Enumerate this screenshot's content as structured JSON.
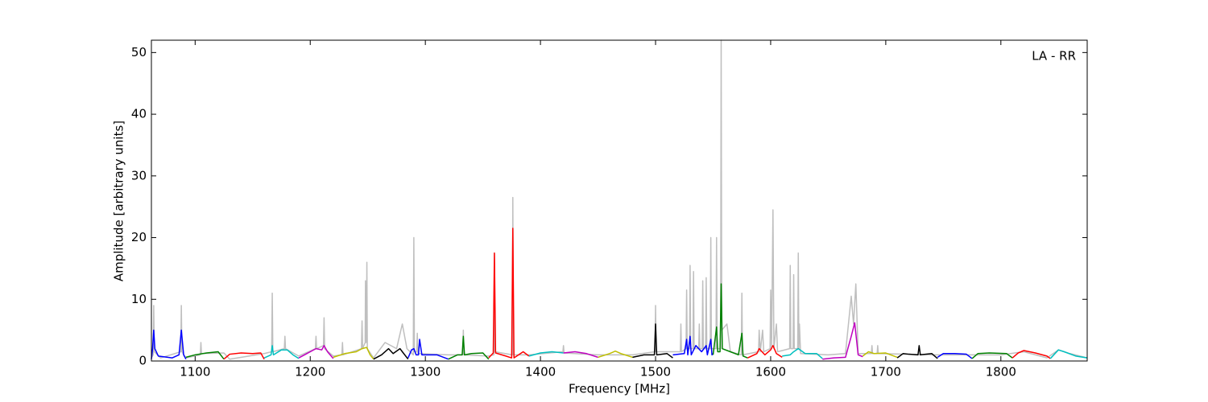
{
  "chart_data": {
    "type": "line",
    "xlabel": "Frequency [MHz]",
    "ylabel": "Amplitude [arbitrary units]",
    "annotation": "LA - RR",
    "xlim": [
      1062,
      1875
    ],
    "ylim": [
      0,
      52
    ],
    "xticks": [
      1100,
      1200,
      1300,
      1400,
      1500,
      1600,
      1700,
      1800
    ],
    "yticks": [
      0,
      10,
      20,
      30,
      40,
      50
    ],
    "series": [
      {
        "color": "#bfbfbf",
        "x": [
          1062,
          1063.5,
          1064,
          1064.5,
          1070,
          1087.5,
          1088,
          1088.5,
          1092,
          1104.5,
          1105,
          1105.5,
          1125,
          1130,
          1160,
          1166.5,
          1167,
          1167.5,
          1177.5,
          1178,
          1178.5,
          1190,
          1204.5,
          1205,
          1205.5,
          1211.5,
          1212,
          1212.5,
          1220,
          1227.5,
          1228,
          1228.5,
          1244.5,
          1245,
          1245.5,
          1247.7,
          1248,
          1248.4,
          1248.8,
          1249.2,
          1249.6,
          1255,
          1265,
          1275,
          1280,
          1284,
          1289.5,
          1290,
          1290.5,
          1292.5,
          1293,
          1293.5,
          1320,
          1332.5,
          1333,
          1333.5,
          1355,
          1359.5,
          1360,
          1360.5,
          1375.5,
          1376,
          1376.5,
          1390,
          1419.5,
          1420,
          1420.5,
          1450,
          1480,
          1499.5,
          1500,
          1500.5,
          1521.5,
          1522,
          1522.5,
          1526.5,
          1527,
          1527.5,
          1529.5,
          1530,
          1530.5,
          1532.5,
          1533,
          1533.5,
          1537.5,
          1538,
          1538.5,
          1540.5,
          1541,
          1541.5,
          1543.5,
          1544,
          1544.5,
          1547.5,
          1548,
          1548.5,
          1552.5,
          1553,
          1553.5,
          1556.5,
          1557,
          1557.5,
          1562,
          1565,
          1574.5,
          1575,
          1575.5,
          1589.5,
          1590,
          1591,
          1593,
          1594,
          1599.5,
          1600,
          1600.8,
          1602,
          1602.8,
          1605,
          1606,
          1616.5,
          1617,
          1617.5,
          1619.5,
          1620,
          1620.5,
          1623.5,
          1624,
          1624.5,
          1625,
          1626,
          1650,
          1665,
          1670,
          1672,
          1674,
          1676,
          1687.5,
          1688,
          1688.5,
          1692.5,
          1693,
          1693.5,
          1740,
          1800,
          1820,
          1840,
          1850,
          1860,
          1875
        ],
        "values": [
          0.5,
          1,
          9,
          1.5,
          0.5,
          1.5,
          9,
          1.5,
          0.5,
          1,
          3,
          1.2,
          1.3,
          0.3,
          1.2,
          1.5,
          11,
          1.5,
          2,
          4,
          2,
          0.8,
          2,
          4,
          2,
          2.5,
          7,
          2,
          0.8,
          1,
          3,
          1,
          2,
          6.5,
          2,
          3,
          13,
          3,
          3,
          16,
          2,
          0.5,
          3,
          2,
          6,
          2,
          1,
          20,
          1.5,
          1.5,
          4.5,
          1.2,
          1,
          1,
          5,
          1,
          0.8,
          1,
          17.5,
          1.5,
          1,
          26.5,
          1,
          1,
          1.5,
          2.5,
          1.3,
          1,
          1,
          1.5,
          9,
          1.5,
          1.5,
          6,
          1.5,
          2,
          11.5,
          2,
          2,
          15.5,
          2,
          2,
          14.5,
          2,
          2,
          6,
          2,
          2,
          13,
          2,
          2,
          13.5,
          2,
          2,
          20,
          2,
          2,
          20,
          2,
          2,
          52,
          5,
          6,
          1.5,
          1,
          11,
          1,
          1.5,
          5,
          1.5,
          5,
          1.5,
          2,
          11.5,
          2,
          24.5,
          2,
          6,
          1.5,
          2,
          15.5,
          2,
          2,
          14,
          2,
          2,
          17.5,
          2,
          6,
          1.2,
          1,
          1.2,
          10.5,
          6,
          12.5,
          1.2,
          1.2,
          2.5,
          1.2,
          1.2,
          2.5,
          1.2,
          1,
          1,
          1.5,
          0.5,
          1.8,
          1.2,
          0.5
        ]
      },
      {
        "color": "#0000ff",
        "x": [
          1062,
          1063,
          1064,
          1065,
          1068,
          1080,
          1086,
          1088,
          1090,
          1092
        ],
        "values": [
          0.3,
          2,
          5,
          2,
          0.8,
          0.5,
          1,
          5,
          1,
          0.3
        ]
      },
      {
        "color": "#008000",
        "x": [
          1092,
          1100,
          1110,
          1120,
          1125
        ],
        "values": [
          0.6,
          1,
          1.3,
          1.5,
          0.3
        ]
      },
      {
        "color": "#ff0000",
        "x": [
          1125,
          1130,
          1140,
          1150,
          1157,
          1160
        ],
        "values": [
          0.3,
          1.1,
          1.3,
          1.2,
          1.3,
          0.3
        ]
      },
      {
        "color": "#00bfbf",
        "x": [
          1160,
          1166,
          1167,
          1168,
          1175,
          1180,
          1185,
          1190
        ],
        "values": [
          0.5,
          1,
          2.5,
          1,
          1.8,
          1.8,
          1,
          0.4
        ]
      },
      {
        "color": "#bf00bf",
        "x": [
          1190,
          1200,
          1205,
          1210,
          1212,
          1215,
          1220
        ],
        "values": [
          0.5,
          1.5,
          2,
          1.8,
          2.5,
          1.5,
          0.4
        ]
      },
      {
        "color": "#bfbf00",
        "x": [
          1220,
          1230,
          1240,
          1245,
          1249,
          1252,
          1255
        ],
        "values": [
          0.6,
          1.2,
          1.5,
          2,
          2.2,
          1,
          0.3
        ]
      },
      {
        "color": "#000000",
        "x": [
          1255,
          1262,
          1268,
          1272,
          1278,
          1280,
          1285
        ],
        "values": [
          0.3,
          1,
          2,
          1.2,
          2,
          1.5,
          0.3
        ]
      },
      {
        "color": "#0000ff",
        "x": [
          1285,
          1288,
          1290,
          1292,
          1294,
          1295,
          1297,
          1310,
          1320
        ],
        "values": [
          0.5,
          1.8,
          2,
          1,
          1,
          3.5,
          1,
          1,
          0.3
        ]
      },
      {
        "color": "#008000",
        "x": [
          1320,
          1328,
          1332,
          1333,
          1334,
          1340,
          1350,
          1355
        ],
        "values": [
          0.3,
          1,
          1,
          4,
          1,
          1.2,
          1.3,
          0.3
        ]
      },
      {
        "color": "#ff0000",
        "x": [
          1355,
          1359,
          1360,
          1361,
          1370,
          1375,
          1376,
          1377,
          1385,
          1390
        ],
        "values": [
          0.5,
          1.3,
          17.5,
          1.3,
          0.8,
          0.5,
          21.5,
          0.5,
          1.5,
          0.8
        ]
      },
      {
        "color": "#00bfbf",
        "x": [
          1390,
          1400,
          1410,
          1420
        ],
        "values": [
          0.8,
          1.3,
          1.5,
          1.3
        ]
      },
      {
        "color": "#bf00bf",
        "x": [
          1420,
          1430,
          1440,
          1450
        ],
        "values": [
          1.3,
          1.5,
          1.2,
          0.6
        ]
      },
      {
        "color": "#bfbf00",
        "x": [
          1450,
          1460,
          1465,
          1470,
          1480
        ],
        "values": [
          0.6,
          1.2,
          1.6,
          1.2,
          0.6
        ]
      },
      {
        "color": "#000000",
        "x": [
          1480,
          1490,
          1499,
          1500,
          1501,
          1510,
          1515
        ],
        "values": [
          0.6,
          1,
          1,
          6,
          1,
          1.2,
          0.5
        ]
      },
      {
        "color": "#0000ff",
        "x": [
          1515,
          1525,
          1527,
          1528,
          1530,
          1531,
          1535,
          1540,
          1544,
          1545,
          1548,
          1549,
          1550
        ],
        "values": [
          1,
          1.2,
          3.5,
          1,
          4,
          1,
          2.5,
          1.5,
          2.5,
          1,
          3.5,
          1,
          1.2
        ]
      },
      {
        "color": "#008000",
        "x": [
          1550,
          1553,
          1554,
          1556,
          1557,
          1558,
          1565,
          1572,
          1575,
          1576,
          1580
        ],
        "values": [
          1,
          5.5,
          1.5,
          1.5,
          12.5,
          2,
          1.5,
          1,
          4.5,
          0.8,
          0.5
        ]
      },
      {
        "color": "#ff0000",
        "x": [
          1580,
          1588,
          1590,
          1595,
          1600,
          1602,
          1605,
          1610
        ],
        "values": [
          0.5,
          1.2,
          2,
          1,
          1.8,
          2.5,
          1.2,
          0.6
        ]
      },
      {
        "color": "#00bfbf",
        "x": [
          1610,
          1617,
          1620,
          1624,
          1630,
          1640,
          1645
        ],
        "values": [
          0.8,
          1,
          1.5,
          2,
          1.2,
          1.2,
          0.4
        ]
      },
      {
        "color": "#bf00bf",
        "x": [
          1645,
          1655,
          1665,
          1670,
          1673,
          1676,
          1680
        ],
        "values": [
          0.3,
          0.5,
          0.6,
          4,
          6.2,
          1,
          0.7
        ]
      },
      {
        "color": "#bfbf00",
        "x": [
          1680,
          1685,
          1690,
          1700,
          1710
        ],
        "values": [
          0.8,
          1.5,
          1.2,
          1.3,
          0.6
        ]
      },
      {
        "color": "#000000",
        "x": [
          1710,
          1715,
          1720,
          1728,
          1729,
          1730,
          1740,
          1745
        ],
        "values": [
          0.5,
          1.2,
          1.1,
          1,
          2.5,
          1,
          1.2,
          0.4
        ]
      },
      {
        "color": "#0000ff",
        "x": [
          1745,
          1750,
          1760,
          1770,
          1775
        ],
        "values": [
          0.6,
          1.2,
          1.2,
          1.1,
          0.4
        ]
      },
      {
        "color": "#008000",
        "x": [
          1775,
          1780,
          1790,
          1805,
          1810
        ],
        "values": [
          0.4,
          1.2,
          1.3,
          1.2,
          0.5
        ]
      },
      {
        "color": "#ff0000",
        "x": [
          1810,
          1815,
          1820,
          1830,
          1840,
          1843
        ],
        "values": [
          0.5,
          1.3,
          1.7,
          1.3,
          0.8,
          0.4
        ]
      },
      {
        "color": "#00bfbf",
        "x": [
          1843,
          1850,
          1855,
          1865,
          1875
        ],
        "values": [
          0.4,
          1.8,
          1.5,
          0.8,
          0.5
        ]
      }
    ]
  }
}
